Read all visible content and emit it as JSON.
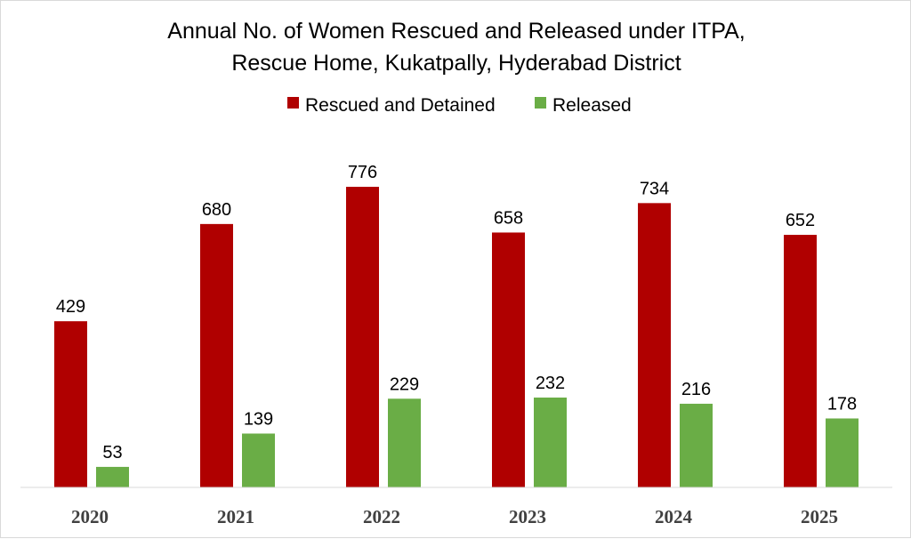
{
  "chart_data": {
    "type": "bar",
    "title": "Annual No. of  Women Rescued and Released under ITPA,",
    "subtitle": "Rescue Home, Kukatpally, Hyderabad District",
    "categories": [
      "2020",
      "2021",
      "2022",
      "2023",
      "2024",
      "2025"
    ],
    "series": [
      {
        "name": "Rescued and Detained",
        "values": [
          429,
          680,
          776,
          658,
          734,
          652
        ],
        "color": "#b00000"
      },
      {
        "name": "Released",
        "values": [
          53,
          139,
          229,
          232,
          216,
          178
        ],
        "color": "#6aad46"
      }
    ],
    "xlabel": "",
    "ylabel": "",
    "ylim": [
      0,
      900
    ],
    "grid": false,
    "legend": "top-center",
    "data_labels": true
  }
}
